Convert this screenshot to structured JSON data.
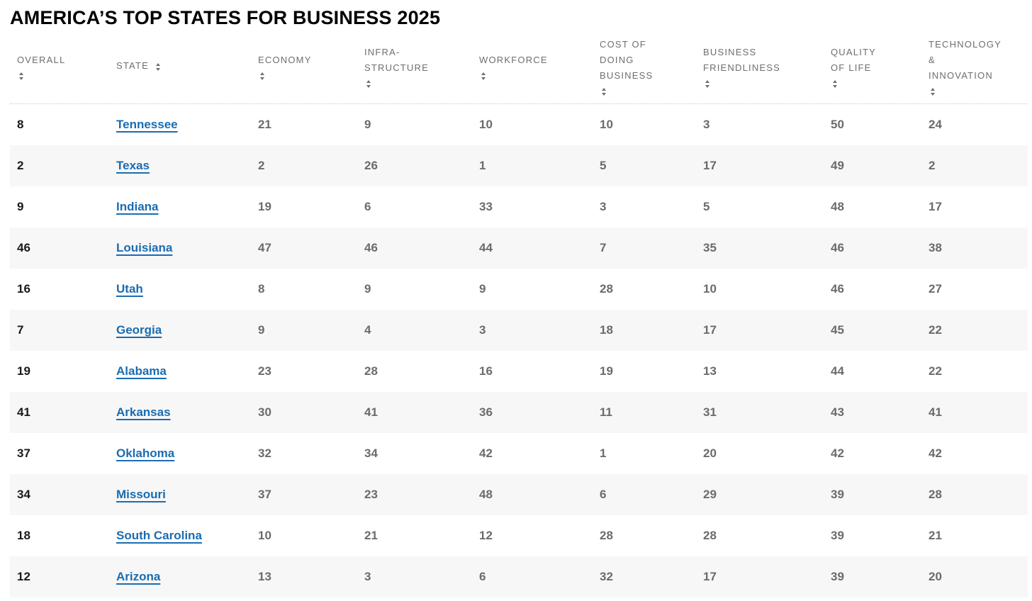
{
  "page": {
    "title": "AMERICA’S TOP STATES FOR BUSINESS 2025"
  },
  "icons": {
    "sort_up": "▲",
    "sort_down": "▼"
  },
  "colors": {
    "link_blue": "#1a6cb1",
    "header_gray": "#6d6e71",
    "number_gray": "#6a6b6e",
    "rank_black": "#1a1a1a",
    "stripe": "#f7f7f7"
  },
  "table": {
    "columns": [
      {
        "key": "overall",
        "lines": [
          "OVERALL"
        ],
        "arrows_inline": false
      },
      {
        "key": "state",
        "lines": [
          "STATE"
        ],
        "arrows_inline": true
      },
      {
        "key": "economy",
        "lines": [
          "ECONOMY"
        ],
        "arrows_inline": false
      },
      {
        "key": "infrastructure",
        "lines": [
          "INFRA-",
          "STRUCTURE"
        ],
        "arrows_inline": false
      },
      {
        "key": "workforce",
        "lines": [
          "WORKFORCE"
        ],
        "arrows_inline": false
      },
      {
        "key": "cost_of_doing_business",
        "lines": [
          "COST OF",
          "DOING",
          "BUSINESS"
        ],
        "arrows_inline": false
      },
      {
        "key": "business_friendliness",
        "lines": [
          "BUSINESS",
          "FRIENDLINESS"
        ],
        "arrows_inline": false
      },
      {
        "key": "quality_of_life",
        "lines": [
          "QUALITY",
          "OF LIFE"
        ],
        "arrows_inline": false
      },
      {
        "key": "technology_innovation",
        "lines": [
          "TECHNOLOGY",
          "&",
          "INNOVATION"
        ],
        "arrows_inline": false
      }
    ],
    "rows": [
      {
        "overall": "8",
        "state": "Tennessee",
        "economy": "21",
        "infrastructure": "9",
        "workforce": "10",
        "cost_of_doing_business": "10",
        "business_friendliness": "3",
        "quality_of_life": "50",
        "technology_innovation": "24"
      },
      {
        "overall": "2",
        "state": "Texas",
        "economy": "2",
        "infrastructure": "26",
        "workforce": "1",
        "cost_of_doing_business": "5",
        "business_friendliness": "17",
        "quality_of_life": "49",
        "technology_innovation": "2"
      },
      {
        "overall": "9",
        "state": "Indiana",
        "economy": "19",
        "infrastructure": "6",
        "workforce": "33",
        "cost_of_doing_business": "3",
        "business_friendliness": "5",
        "quality_of_life": "48",
        "technology_innovation": "17"
      },
      {
        "overall": "46",
        "state": "Louisiana",
        "economy": "47",
        "infrastructure": "46",
        "workforce": "44",
        "cost_of_doing_business": "7",
        "business_friendliness": "35",
        "quality_of_life": "46",
        "technology_innovation": "38"
      },
      {
        "overall": "16",
        "state": "Utah",
        "economy": "8",
        "infrastructure": "9",
        "workforce": "9",
        "cost_of_doing_business": "28",
        "business_friendliness": "10",
        "quality_of_life": "46",
        "technology_innovation": "27"
      },
      {
        "overall": "7",
        "state": "Georgia",
        "economy": "9",
        "infrastructure": "4",
        "workforce": "3",
        "cost_of_doing_business": "18",
        "business_friendliness": "17",
        "quality_of_life": "45",
        "technology_innovation": "22"
      },
      {
        "overall": "19",
        "state": "Alabama",
        "economy": "23",
        "infrastructure": "28",
        "workforce": "16",
        "cost_of_doing_business": "19",
        "business_friendliness": "13",
        "quality_of_life": "44",
        "technology_innovation": "22"
      },
      {
        "overall": "41",
        "state": "Arkansas",
        "economy": "30",
        "infrastructure": "41",
        "workforce": "36",
        "cost_of_doing_business": "11",
        "business_friendliness": "31",
        "quality_of_life": "43",
        "technology_innovation": "41"
      },
      {
        "overall": "37",
        "state": "Oklahoma",
        "economy": "32",
        "infrastructure": "34",
        "workforce": "42",
        "cost_of_doing_business": "1",
        "business_friendliness": "20",
        "quality_of_life": "42",
        "technology_innovation": "42"
      },
      {
        "overall": "34",
        "state": "Missouri",
        "economy": "37",
        "infrastructure": "23",
        "workforce": "48",
        "cost_of_doing_business": "6",
        "business_friendliness": "29",
        "quality_of_life": "39",
        "technology_innovation": "28"
      },
      {
        "overall": "18",
        "state": "South Carolina",
        "economy": "10",
        "infrastructure": "21",
        "workforce": "12",
        "cost_of_doing_business": "28",
        "business_friendliness": "28",
        "quality_of_life": "39",
        "technology_innovation": "21"
      },
      {
        "overall": "12",
        "state": "Arizona",
        "economy": "13",
        "infrastructure": "3",
        "workforce": "6",
        "cost_of_doing_business": "32",
        "business_friendliness": "17",
        "quality_of_life": "39",
        "technology_innovation": "20"
      }
    ]
  }
}
